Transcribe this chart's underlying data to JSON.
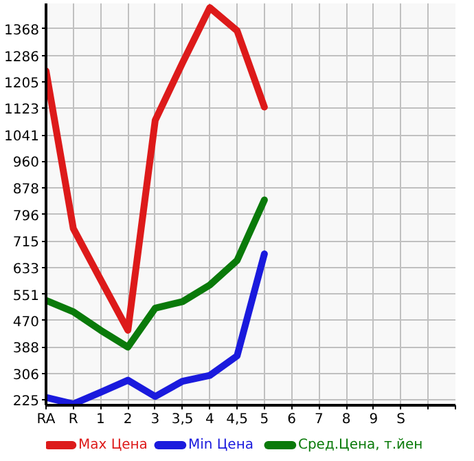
{
  "chart_data": {
    "type": "line",
    "categories": [
      "RA",
      "R",
      "1",
      "2",
      "3",
      "3,5",
      "4",
      "4,5",
      "5",
      "6",
      "7",
      "8",
      "9",
      "S",
      null,
      null
    ],
    "series": [
      {
        "name": "Max Цена",
        "color": "#dd1a1a",
        "values": [
          1238,
          753,
          596,
          440,
          1086,
          1263,
          1433,
          1362,
          1127,
          null,
          null,
          null,
          null,
          null,
          null,
          null
        ]
      },
      {
        "name": "Min Цена",
        "color": "#1a1add",
        "values": [
          233,
          213,
          249,
          286,
          236,
          283,
          301,
          361,
          675,
          null,
          null,
          null,
          null,
          null,
          null,
          null
        ]
      },
      {
        "name": "Сред.Цена, т.йен",
        "color": "#0a7a0a",
        "values": [
          532,
          497,
          440,
          388,
          508,
          528,
          579,
          655,
          841,
          null,
          null,
          null,
          null,
          null,
          null,
          null
        ]
      }
    ],
    "ylim": [
      209,
      1446
    ],
    "yticks": [
      225,
      306,
      388,
      470,
      551,
      633,
      715,
      796,
      878,
      960,
      1041,
      1123,
      1205,
      1286,
      1368
    ],
    "grid": true,
    "legend": "bottom",
    "marker": "none",
    "line_style": "solid"
  }
}
